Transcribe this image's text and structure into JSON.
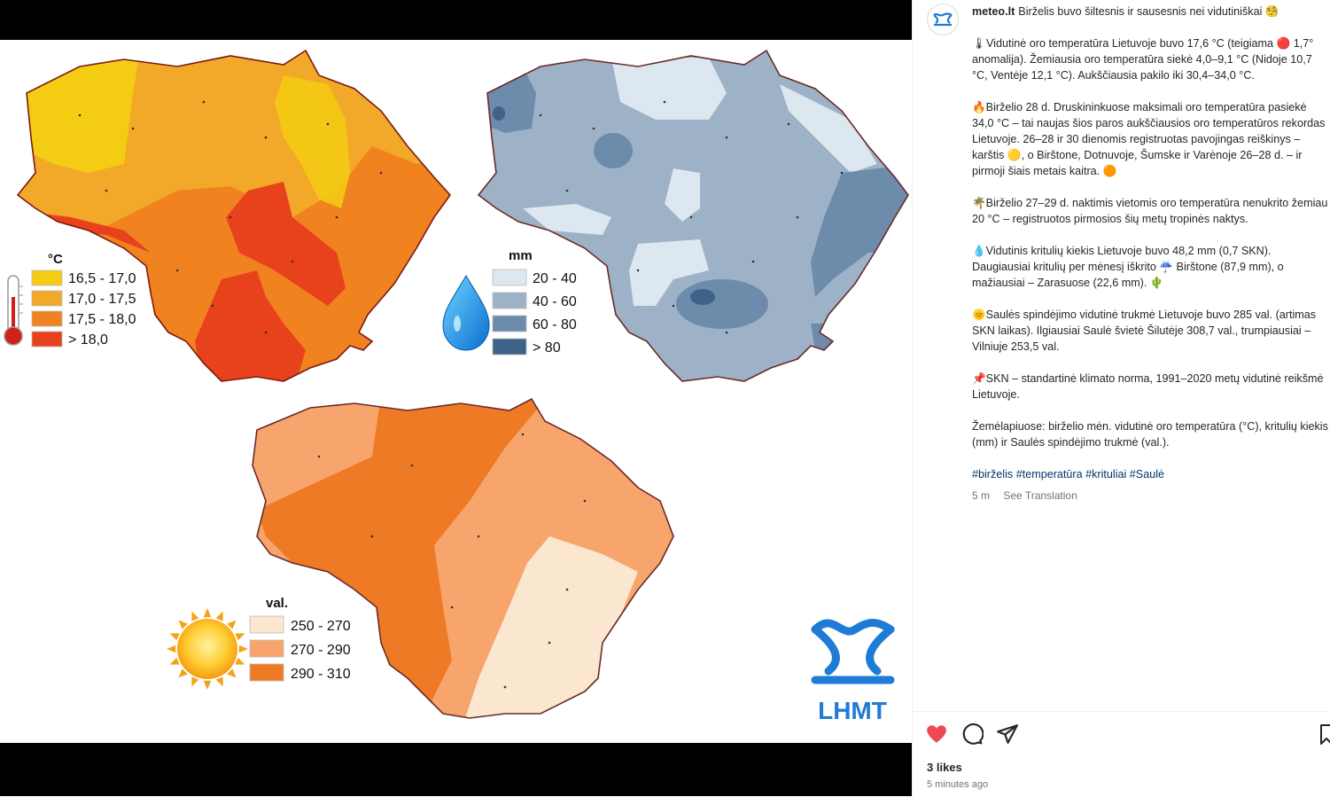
{
  "post": {
    "username": "meteo.lt",
    "headline": "Birželis buvo šiltesnis ir sausesnis nei vidutiniškai 🧐",
    "paragraphs": [
      "🌡Vidutinė oro temperatūra Lietuvoje buvo 17,6 °C (teigiama 🔴 1,7° anomalija). Žemiausia oro temperatūra siekė 4,0–9,1 °C (Nidoje 10,7 °C, Ventėje 12,1 °C). Aukščiausia pakilo iki 30,4–34,0 °C.",
      "🔥Birželio 28 d. Druskininkuose maksimali oro temperatūra pasiekė 34,0 °C – tai naujas šios paros aukščiausios oro temperatūros rekordas Lietuvoje. 26–28 ir 30 dienomis registruotas pavojingas reiškinys – karštis 🟡, o Birštone, Dotnuvoje, Šumske ir Varėnoje 26–28 d. – ir pirmoji šiais metais kaitra. 🟠",
      "🌴Birželio 27–29 d. naktimis vietomis oro temperatūra nenukrito žemiau 20 °C – registruotos pirmosios šių metų tropinės naktys.",
      "💧Vidutinis kritulių kiekis Lietuvoje buvo 48,2 mm (0,7 SKN). Daugiausiai kritulių per mėnesį iškrito ☔ Birštone (87,9 mm), o mažiausiai – Zarasuose (22,6 mm). 🌵",
      "🌞Saulės spindėjimo vidutinė trukmė Lietuvoje buvo 285 val. (artimas SKN laikas). Ilgiausiai Saulė švietė Šilutėje 308,7 val., trumpiausiai – Vilniuje 253,5 val.",
      "📌SKN – standartinė klimato norma, 1991–2020 metų vidutinė reikšmė Lietuvoje.",
      "Žemėlapiuose: birželio mėn. vidutinė oro temperatūra (°C), kritulių kiekis (mm) ir Saulės spindėjimo trukmė (val.)."
    ],
    "hashtags": "#birželis #temperatūra #krituliai #Saulė",
    "age": "5 m",
    "see_translation": "See Translation",
    "likes": "3 likes",
    "timestamp": "5 minutes ago"
  },
  "maps": {
    "temperature": {
      "title": "°C",
      "items": [
        {
          "label": "16,5 - 17,0",
          "color": "#f5cc14"
        },
        {
          "label": "17,0 - 17,5",
          "color": "#f2a828"
        },
        {
          "label": "17,5 - 18,0",
          "color": "#f08220"
        },
        {
          "label": "> 18,0",
          "color": "#e8421c"
        }
      ]
    },
    "precipitation": {
      "title": "mm",
      "items": [
        {
          "label": "20 - 40",
          "color": "#dce7ef"
        },
        {
          "label": "40 - 60",
          "color": "#9db2c6"
        },
        {
          "label": "60 - 80",
          "color": "#6d8bab"
        },
        {
          "label": "> 80",
          "color": "#3f6388"
        }
      ]
    },
    "sunshine": {
      "title": "val.",
      "items": [
        {
          "label": "250 - 270",
          "color": "#fbe6cf"
        },
        {
          "label": "270 - 290",
          "color": "#f7a56c"
        },
        {
          "label": "290 - 310",
          "color": "#ee7a26"
        }
      ]
    },
    "logo_text": "LHMT"
  },
  "colors": {
    "heart": "#ed4956",
    "logo_blue": "#1e7bd6"
  }
}
